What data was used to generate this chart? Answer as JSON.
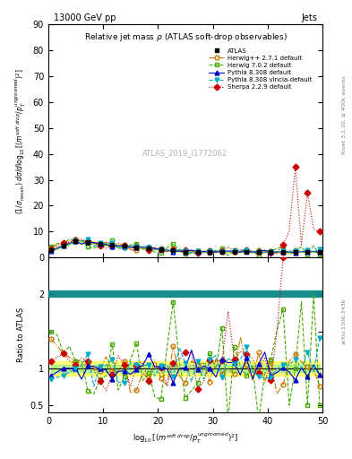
{
  "title": "13000 GeV pp",
  "subtitle": "Relative jet mass ρ (ATLAS soft-drop observables)",
  "right_label": "Jets",
  "ylabel_main": "(1/σₚₑₜᴸ₁ₙ) dσ/d log₁₀[(mˢᵒᶠᵗ ᵈʳᵒᵖ/pᵀᵘⁿᶜʳᵒᵒᵐᵉᵈ)²]",
  "ylabel_ratio": "Ratio to ATLAS",
  "xlabel": "log₁₀[(mˢᵒᶠᵗ ᵈʳᵒᵖ/pᵀᵘⁿᶜʳᵒᵒᵐᵉᵈ)²]",
  "watermark": "ATLAS_2019_I1772062",
  "ylim_main": [
    0,
    90
  ],
  "ylim_ratio": [
    0.4,
    2.5
  ],
  "xlim": [
    0,
    50
  ],
  "legend_entries": [
    "ATLAS",
    "Herwig++ 2.7.1 default",
    "Herwig 7.0.2 default",
    "Pythia 8.308 default",
    "Pythia 8.308 vincia-default",
    "Sherpa 2.2.9 default"
  ],
  "atlas_color": "black",
  "herwig271_color": "#cc7700",
  "herwig702_color": "#44aa00",
  "pythia308_color": "#0000cc",
  "vincia_color": "#00aacc",
  "sherpa_color": "#cc0000",
  "right_axis_text": "Rivet 3.1.10, ≥ 400k events",
  "arxiv_text": "arXiv:1306.3436"
}
